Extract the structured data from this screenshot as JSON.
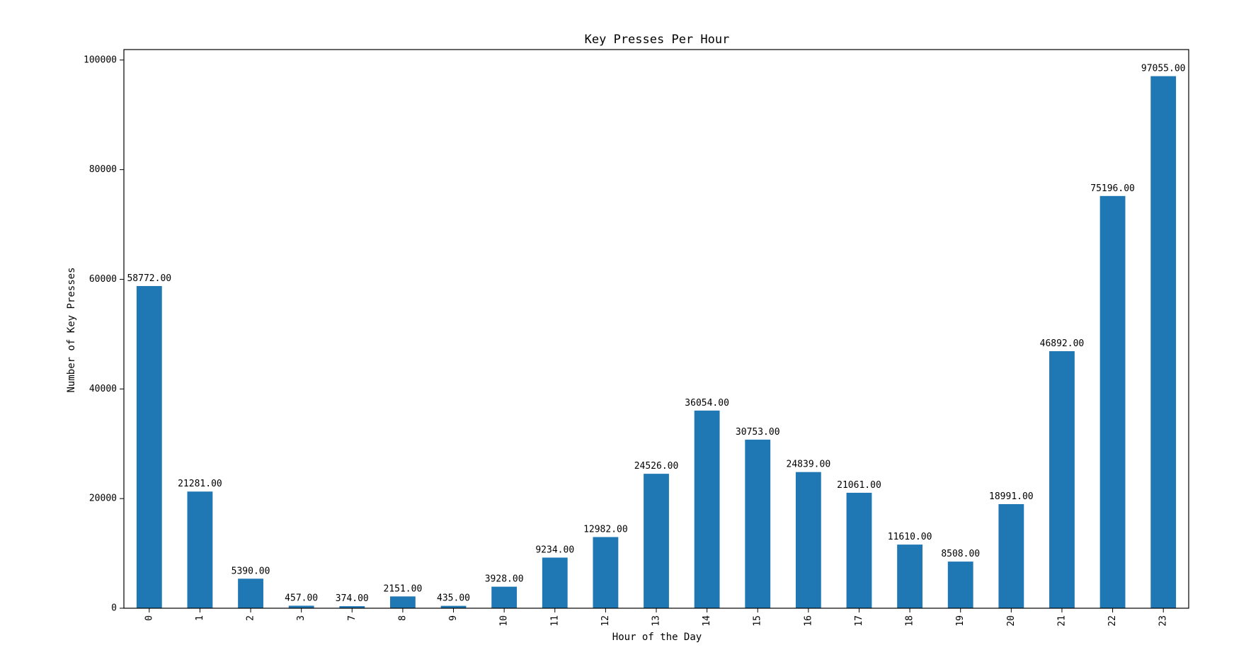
{
  "chart_data": {
    "type": "bar",
    "title": "Key Presses Per Hour",
    "xlabel": "Hour of the Day",
    "ylabel": "Number of Key Presses",
    "categories": [
      "0",
      "1",
      "2",
      "3",
      "7",
      "8",
      "9",
      "10",
      "11",
      "12",
      "13",
      "14",
      "15",
      "16",
      "17",
      "18",
      "19",
      "20",
      "21",
      "22",
      "23"
    ],
    "values": [
      58772,
      21281,
      5390,
      457,
      374,
      2151,
      435,
      3928,
      9234,
      12982,
      24526,
      36054,
      30753,
      24839,
      21061,
      11610,
      8508,
      18991,
      46892,
      75196,
      97055
    ],
    "data_labels": [
      "58772.00",
      "21281.00",
      "5390.00",
      "457.00",
      "374.00",
      "2151.00",
      "435.00",
      "3928.00",
      "9234.00",
      "12982.00",
      "24526.00",
      "36054.00",
      "30753.00",
      "24839.00",
      "21061.00",
      "11610.00",
      "8508.00",
      "18991.00",
      "46892.00",
      "75196.00",
      "97055.00"
    ],
    "ylim": [
      0,
      101908
    ],
    "yticks": [
      0,
      20000,
      40000,
      60000,
      80000,
      100000
    ],
    "ytick_labels": [
      "0",
      "20000",
      "40000",
      "60000",
      "80000",
      "100000"
    ],
    "grid": false,
    "legend": "none",
    "bar_color": "#1f77b4"
  }
}
